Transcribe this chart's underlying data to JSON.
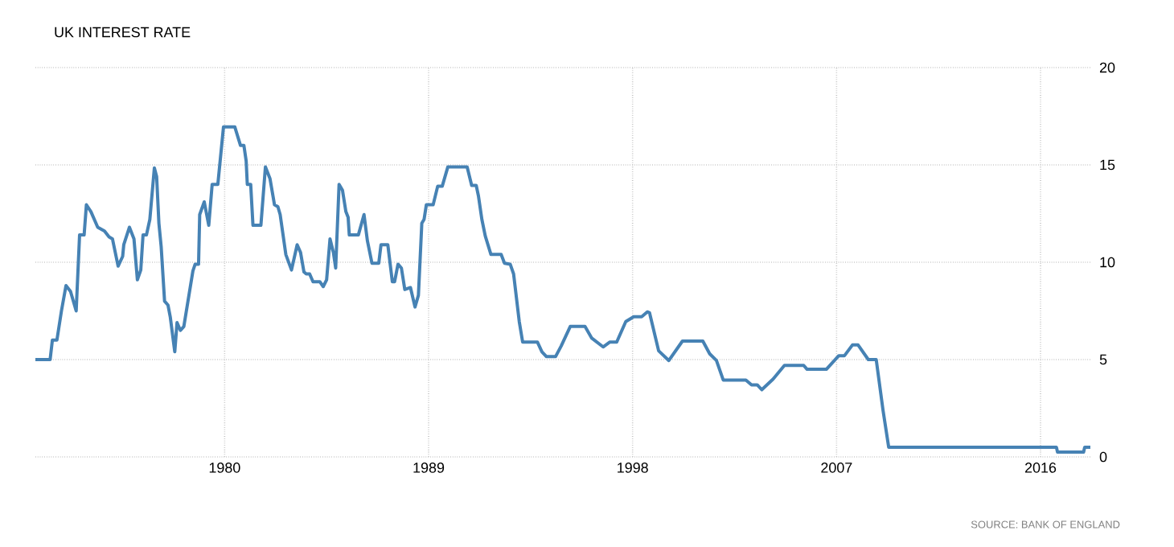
{
  "chart_data": {
    "type": "line",
    "title": "UK INTEREST RATE",
    "annotations": [
      "SOURCE: BANK OF ENGLAND"
    ],
    "x": [
      1971.65,
      1972.3,
      1972.4,
      1972.6,
      1972.8,
      1973.0,
      1973.2,
      1973.45,
      1973.6,
      1973.8,
      1973.9,
      1974.1,
      1974.4,
      1974.7,
      1974.9,
      1975.05,
      1975.3,
      1975.5,
      1975.55,
      1975.8,
      1976.0,
      1976.15,
      1976.3,
      1976.4,
      1976.55,
      1976.7,
      1976.9,
      1977.0,
      1977.1,
      1977.2,
      1977.35,
      1977.5,
      1977.6,
      1977.8,
      1977.9,
      1978.05,
      1978.2,
      1978.6,
      1978.7,
      1978.85,
      1978.9,
      1979.1,
      1979.3,
      1979.45,
      1979.7,
      1979.95,
      1980.45,
      1980.7,
      1980.85,
      1980.95,
      1981.0,
      1981.15,
      1981.25,
      1981.6,
      1981.8,
      1982.0,
      1982.2,
      1982.35,
      1982.45,
      1982.7,
      1982.95,
      1983.2,
      1983.35,
      1983.5,
      1983.6,
      1983.75,
      1983.9,
      1984.2,
      1984.35,
      1984.5,
      1984.65,
      1984.8,
      1984.9,
      1985.05,
      1985.2,
      1985.35,
      1985.45,
      1985.5,
      1985.9,
      1986.15,
      1986.3,
      1986.5,
      1986.8,
      1986.9,
      1987.2,
      1987.4,
      1987.5,
      1987.65,
      1987.8,
      1987.95,
      1988.2,
      1988.4,
      1988.55,
      1988.7,
      1988.8,
      1988.9,
      1989.2,
      1989.4,
      1989.6,
      1989.85,
      1990.7,
      1990.9,
      1991.1,
      1991.2,
      1991.35,
      1991.5,
      1991.75,
      1992.2,
      1992.35,
      1992.6,
      1992.75,
      1993.0,
      1993.15,
      1993.8,
      1994.0,
      1994.2,
      1994.6,
      1994.85,
      1995.25,
      1995.9,
      1996.2,
      1996.7,
      1997.0,
      1997.3,
      1997.7,
      1998.05,
      1998.4,
      1998.65,
      1998.75,
      1999.15,
      1999.6,
      2000.2,
      2001.1,
      2001.4,
      2001.7,
      2002.0,
      2003.0,
      2003.25,
      2003.5,
      2003.7,
      2004.2,
      2004.7,
      2005.55,
      2005.7,
      2006.55,
      2007.1,
      2007.35,
      2007.7,
      2007.95,
      2008.4,
      2008.75,
      2009.05,
      2009.3,
      2016.7,
      2016.75,
      2017.9,
      2017.95,
      2018.2
    ],
    "values": [
      5.0,
      5.0,
      6.0,
      6.0,
      7.5,
      8.8,
      8.5,
      7.5,
      11.4,
      11.4,
      12.95,
      12.6,
      11.8,
      11.6,
      11.3,
      11.2,
      9.8,
      10.3,
      10.9,
      11.8,
      11.2,
      9.1,
      9.6,
      11.4,
      11.4,
      12.2,
      14.85,
      14.4,
      12.0,
      10.8,
      8.0,
      7.8,
      7.2,
      5.4,
      6.9,
      6.5,
      6.7,
      9.55,
      9.9,
      9.9,
      12.45,
      13.1,
      11.9,
      14.0,
      14.0,
      16.95,
      16.95,
      16.0,
      16.0,
      15.2,
      14.0,
      14.0,
      11.9,
      11.9,
      14.9,
      14.3,
      12.95,
      12.85,
      12.45,
      10.4,
      9.6,
      10.9,
      10.5,
      9.5,
      9.4,
      9.4,
      9.0,
      9.0,
      8.75,
      9.1,
      11.2,
      10.5,
      9.7,
      14.0,
      13.7,
      12.6,
      12.3,
      11.4,
      11.4,
      12.45,
      11.1,
      9.95,
      9.95,
      10.9,
      10.9,
      9.0,
      9.0,
      9.9,
      9.7,
      8.6,
      8.7,
      7.7,
      8.3,
      12.0,
      12.2,
      12.95,
      12.95,
      13.9,
      13.9,
      14.9,
      14.9,
      13.95,
      13.95,
      13.4,
      12.2,
      11.35,
      10.4,
      10.4,
      9.95,
      9.9,
      9.4,
      6.95,
      5.9,
      5.9,
      5.4,
      5.15,
      5.15,
      5.7,
      6.7,
      6.7,
      6.1,
      5.65,
      5.9,
      5.9,
      6.95,
      7.2,
      7.2,
      7.45,
      7.4,
      5.45,
      4.95,
      5.95,
      5.95,
      5.3,
      4.95,
      3.95,
      3.95,
      3.7,
      3.7,
      3.45,
      4.0,
      4.7,
      4.7,
      4.5,
      4.5,
      5.2,
      5.2,
      5.75,
      5.75,
      5.0,
      5.0,
      2.4,
      0.5,
      0.5,
      0.25,
      0.25,
      0.5,
      0.5
    ],
    "color": "#4682b4",
    "xlim": [
      1971.65,
      2018.2
    ],
    "xticks": [
      1980,
      1989,
      1998,
      2007,
      2016
    ],
    "ylim": [
      0,
      20
    ],
    "yticks": [
      0,
      5,
      10,
      15,
      20
    ],
    "grid": true,
    "marker": "none",
    "line_style": "solid"
  }
}
